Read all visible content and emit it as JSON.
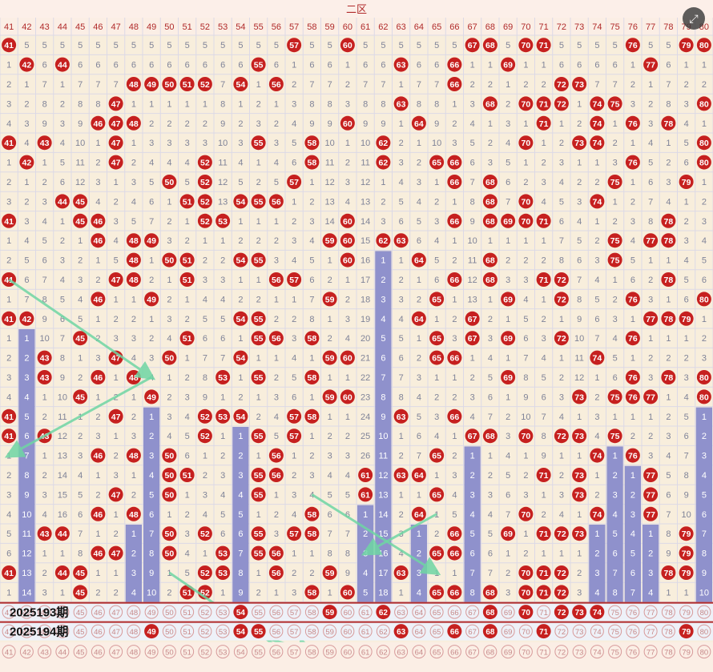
{
  "chart_data": {
    "type": "table",
    "title": "二区",
    "numbers": [
      41,
      42,
      43,
      44,
      45,
      46,
      47,
      48,
      49,
      50,
      51,
      52,
      53,
      54,
      55,
      56,
      57,
      58,
      59,
      60,
      61,
      62,
      63,
      64,
      65,
      66,
      67,
      68,
      69,
      70,
      71,
      72,
      73,
      74,
      75,
      76,
      77,
      78,
      79,
      80
    ],
    "history_hits": [
      [
        41,
        57,
        60,
        67,
        68,
        70,
        71,
        76,
        79,
        80
      ],
      [
        42,
        44,
        55,
        63,
        66,
        69,
        77
      ],
      [
        48,
        49,
        50,
        51,
        52,
        54,
        56,
        66,
        72,
        73
      ],
      [
        47,
        63,
        68,
        70,
        71,
        72,
        74,
        75,
        80
      ],
      [
        46,
        47,
        48,
        60,
        64,
        71,
        74,
        76,
        78
      ],
      [
        41,
        43,
        47,
        55,
        58,
        62,
        70,
        73,
        74,
        80
      ],
      [
        42,
        47,
        52,
        58,
        62,
        65,
        66,
        76,
        80
      ],
      [
        50,
        52,
        57,
        66,
        68,
        75,
        79
      ],
      [
        44,
        45,
        51,
        52,
        54,
        55,
        56,
        68,
        70,
        74
      ],
      [
        41,
        45,
        46,
        52,
        53,
        60,
        66,
        68,
        69,
        70,
        71,
        78
      ],
      [
        46,
        48,
        49,
        59,
        60,
        62,
        63,
        75,
        77,
        78
      ],
      [
        48,
        50,
        51,
        54,
        55,
        60,
        64,
        68,
        75
      ],
      [
        41,
        47,
        48,
        51,
        56,
        57,
        66,
        68,
        71,
        72,
        78
      ],
      [
        46,
        49,
        59,
        65,
        69,
        72,
        76,
        80
      ],
      [
        41,
        42,
        54,
        55,
        64,
        67,
        77,
        78,
        79
      ],
      [
        45,
        51,
        55,
        56,
        58,
        65,
        67,
        69,
        72,
        76
      ],
      [
        43,
        47,
        50,
        54,
        59,
        60,
        65,
        66,
        74
      ],
      [
        43,
        46,
        48,
        53,
        55,
        58,
        69,
        76,
        78,
        80
      ],
      [
        45,
        49,
        59,
        60,
        73,
        75,
        76,
        77,
        80
      ],
      [
        41,
        47,
        52,
        53,
        54,
        57,
        58,
        63,
        66
      ],
      [
        41,
        43,
        52,
        55,
        57,
        67,
        68,
        70,
        72,
        73,
        75
      ],
      [
        46,
        48,
        50,
        56,
        65,
        74,
        76
      ],
      [
        50,
        51,
        55,
        56,
        61,
        63,
        64,
        71,
        73,
        77
      ],
      [
        47,
        50,
        55,
        61,
        65,
        73,
        77
      ],
      [
        46,
        48,
        58,
        64,
        70,
        74,
        77
      ],
      [
        43,
        44,
        50,
        52,
        55,
        57,
        58,
        66,
        69,
        71,
        72,
        73,
        79
      ],
      [
        46,
        47,
        50,
        53,
        55,
        56,
        65,
        66,
        79
      ],
      [
        41,
        44,
        45,
        52,
        53,
        56,
        59,
        63,
        70,
        71,
        72,
        78,
        79
      ],
      [
        45,
        51,
        52,
        58,
        60,
        65,
        66,
        68,
        70,
        71,
        72
      ]
    ],
    "draw_2025193": [
      54,
      59,
      62,
      68,
      70,
      72,
      73,
      74
    ],
    "draw_2025194": [
      49,
      54,
      55,
      63,
      66,
      68,
      71,
      79
    ],
    "label_2025193": "2025193期",
    "label_2025194": "2025194期",
    "frame_color": "#9aa6cf",
    "empty_cell_color": "#7f8398",
    "grid_color": "#dcd9e6",
    "background": "#f8eedc",
    "hit_ball_color": "#c6201f",
    "miss_bar_color": "#8f91cc",
    "trend_arrow_color": "#6fd6a4",
    "draw_row_bg": "#eef1f8"
  },
  "expand_icon": "expand-icon",
  "expand_glyph": "⤢"
}
